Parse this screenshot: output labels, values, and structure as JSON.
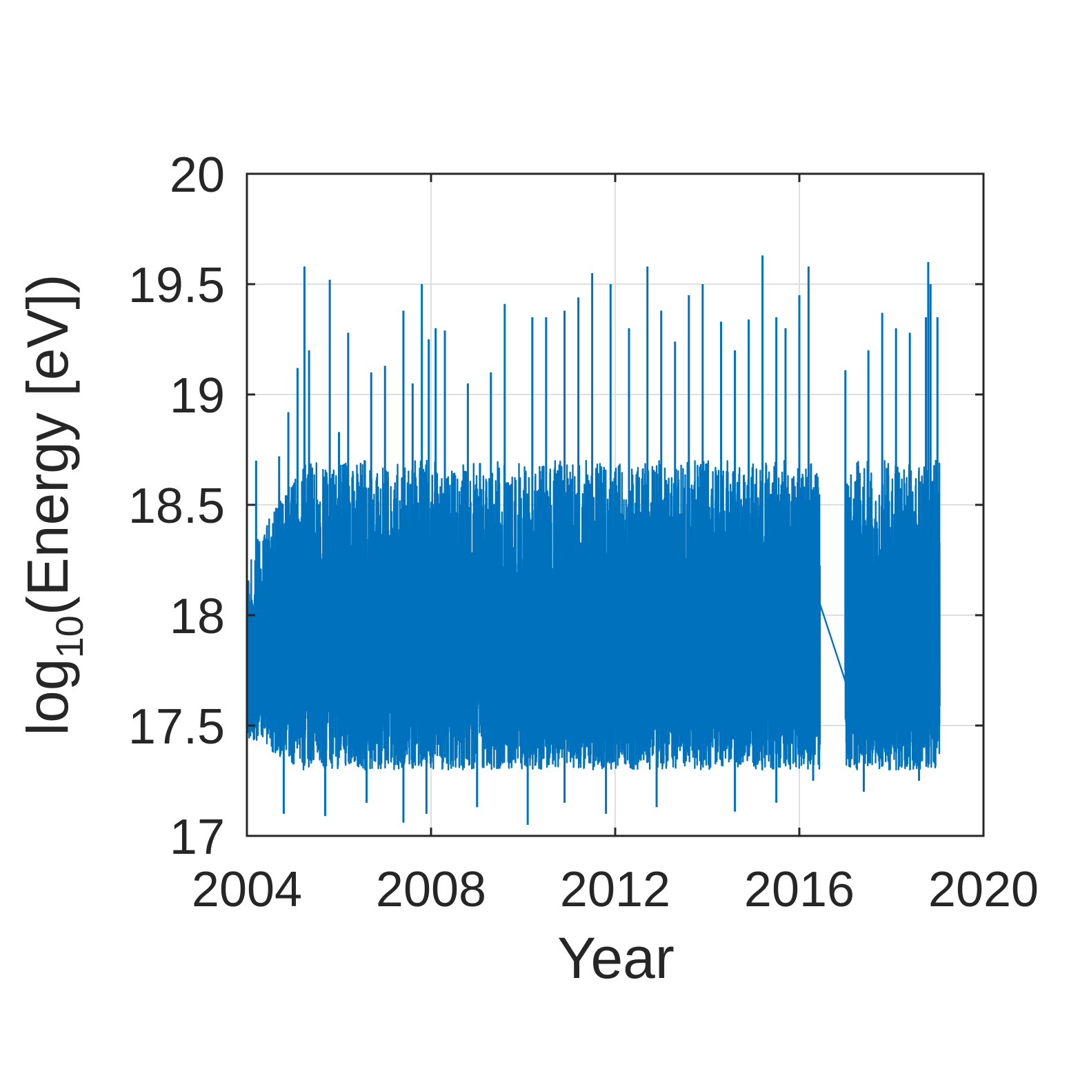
{
  "chart_data": {
    "type": "line",
    "title": "",
    "xlabel": "Year",
    "ylabel_prefix": "log",
    "ylabel_subscript": "10",
    "ylabel_rest": "(Energy [eV])",
    "xlim": [
      2004,
      2020
    ],
    "ylim": [
      17,
      20
    ],
    "x_ticks": [
      2004,
      2008,
      2012,
      2016,
      2020
    ],
    "x_tick_labels": [
      "2004",
      "2008",
      "2012",
      "2016",
      "2020"
    ],
    "y_ticks": [
      17,
      17.5,
      18,
      18.5,
      19,
      19.5,
      20
    ],
    "y_tick_labels": [
      "17",
      "17.5",
      "18",
      "18.5",
      "19",
      "19.5",
      "20"
    ],
    "grid": true,
    "series": [
      {
        "color": "#0072BD",
        "segments": [
          {
            "x_start": 2004.0,
            "x_end": 2016.45
          },
          {
            "x_start": 2017.0,
            "x_end": 2019.05
          }
        ],
        "typical_range": [
          17.3,
          18.7
        ],
        "baseline": 17.75,
        "gap_line": {
          "x": [
            2016.45,
            2017.0
          ],
          "y": [
            18.05,
            17.7
          ]
        },
        "peaks": [
          {
            "x": 2004.2,
            "y": 18.7
          },
          {
            "x": 2004.7,
            "y": 18.72
          },
          {
            "x": 2004.9,
            "y": 18.92
          },
          {
            "x": 2005.1,
            "y": 19.12
          },
          {
            "x": 2005.25,
            "y": 19.58
          },
          {
            "x": 2005.35,
            "y": 19.2
          },
          {
            "x": 2005.8,
            "y": 19.52
          },
          {
            "x": 2006.0,
            "y": 18.83
          },
          {
            "x": 2006.2,
            "y": 19.28
          },
          {
            "x": 2006.7,
            "y": 19.1
          },
          {
            "x": 2007.0,
            "y": 19.13
          },
          {
            "x": 2007.4,
            "y": 19.38
          },
          {
            "x": 2007.6,
            "y": 19.05
          },
          {
            "x": 2007.8,
            "y": 19.5
          },
          {
            "x": 2007.95,
            "y": 19.25
          },
          {
            "x": 2008.1,
            "y": 19.3
          },
          {
            "x": 2008.3,
            "y": 19.29
          },
          {
            "x": 2008.8,
            "y": 19.05
          },
          {
            "x": 2009.3,
            "y": 19.1
          },
          {
            "x": 2009.6,
            "y": 19.41
          },
          {
            "x": 2010.2,
            "y": 19.35
          },
          {
            "x": 2010.5,
            "y": 19.35
          },
          {
            "x": 2010.9,
            "y": 19.38
          },
          {
            "x": 2011.2,
            "y": 19.44
          },
          {
            "x": 2011.5,
            "y": 19.55
          },
          {
            "x": 2011.9,
            "y": 19.5
          },
          {
            "x": 2012.3,
            "y": 19.3
          },
          {
            "x": 2012.7,
            "y": 19.58
          },
          {
            "x": 2013.0,
            "y": 19.38
          },
          {
            "x": 2013.3,
            "y": 19.24
          },
          {
            "x": 2013.6,
            "y": 19.45
          },
          {
            "x": 2013.9,
            "y": 19.5
          },
          {
            "x": 2014.3,
            "y": 19.33
          },
          {
            "x": 2014.6,
            "y": 19.2
          },
          {
            "x": 2014.9,
            "y": 19.34
          },
          {
            "x": 2015.2,
            "y": 19.63
          },
          {
            "x": 2015.5,
            "y": 19.35
          },
          {
            "x": 2015.7,
            "y": 19.3
          },
          {
            "x": 2016.0,
            "y": 19.45
          },
          {
            "x": 2016.2,
            "y": 19.58
          },
          {
            "x": 2017.0,
            "y": 19.11
          },
          {
            "x": 2017.5,
            "y": 19.2
          },
          {
            "x": 2017.8,
            "y": 19.37
          },
          {
            "x": 2018.1,
            "y": 19.3
          },
          {
            "x": 2018.4,
            "y": 19.28
          },
          {
            "x": 2018.75,
            "y": 19.35
          },
          {
            "x": 2018.8,
            "y": 19.6
          },
          {
            "x": 2018.85,
            "y": 19.5
          },
          {
            "x": 2019.0,
            "y": 19.35
          }
        ],
        "troughs": [
          {
            "x": 2004.8,
            "y": 17.1
          },
          {
            "x": 2005.7,
            "y": 17.09
          },
          {
            "x": 2006.6,
            "y": 17.15
          },
          {
            "x": 2007.4,
            "y": 17.06
          },
          {
            "x": 2007.9,
            "y": 17.1
          },
          {
            "x": 2009.0,
            "y": 17.13
          },
          {
            "x": 2010.1,
            "y": 17.05
          },
          {
            "x": 2010.9,
            "y": 17.15
          },
          {
            "x": 2011.8,
            "y": 17.1
          },
          {
            "x": 2012.9,
            "y": 17.13
          },
          {
            "x": 2014.6,
            "y": 17.11
          },
          {
            "x": 2015.5,
            "y": 17.15
          },
          {
            "x": 2016.3,
            "y": 17.25
          },
          {
            "x": 2017.4,
            "y": 17.2
          },
          {
            "x": 2018.6,
            "y": 17.25
          }
        ]
      }
    ]
  }
}
